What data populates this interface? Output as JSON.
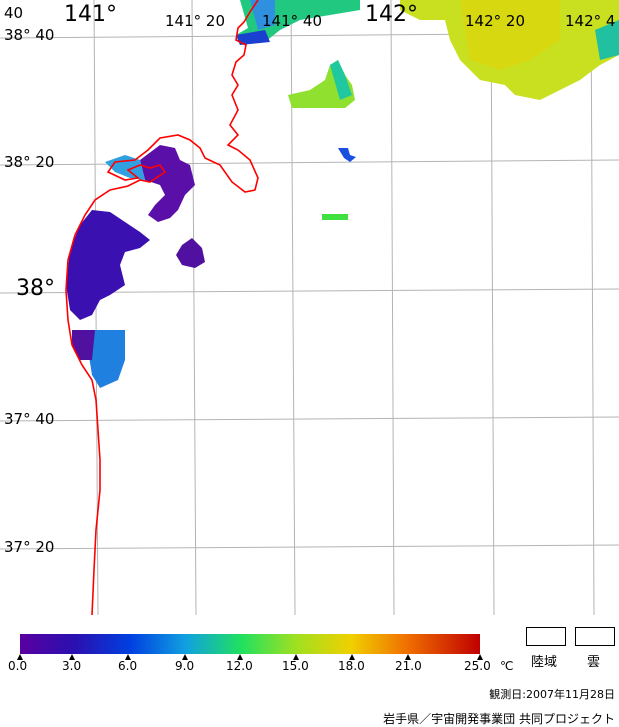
{
  "map": {
    "longitudes": [
      {
        "label": "141°",
        "class": "big"
      },
      {
        "label": "141° 20",
        "class": "small"
      },
      {
        "label": "141° 40",
        "class": "small"
      },
      {
        "label": "142°",
        "class": "big"
      },
      {
        "label": "142° 20",
        "class": "small"
      },
      {
        "label": "142° 4",
        "class": "small"
      }
    ],
    "latitudes": [
      {
        "label": "38° 40",
        "class": "small"
      },
      {
        "label": "38° 20",
        "class": "small"
      },
      {
        "label": "38°",
        "class": "big"
      },
      {
        "label": "37° 40",
        "class": "small"
      },
      {
        "label": "37° 20",
        "class": "small"
      }
    ],
    "corner_label": "40",
    "coast_color": "#ff0000",
    "grid_color": "#b4b4b4"
  },
  "colorbar": {
    "ticks": [
      "0.0",
      "3.0",
      "6.0",
      "9.0",
      "12.0",
      "15.0",
      "18.0",
      "21.0",
      "25.0"
    ],
    "unit": "℃",
    "colors": [
      "#5a00a0",
      "#2a10b0",
      "#0040e0",
      "#10a0e0",
      "#20e060",
      "#a0e020",
      "#f0d000",
      "#f07000",
      "#c00000"
    ]
  },
  "legend": {
    "land_label": "陸域",
    "cloud_label": "雲"
  },
  "footer": {
    "observation_date": "観測日:2007年11月28日",
    "credit": "岩手県／宇宙開発事業団 共同プロジェクト"
  }
}
